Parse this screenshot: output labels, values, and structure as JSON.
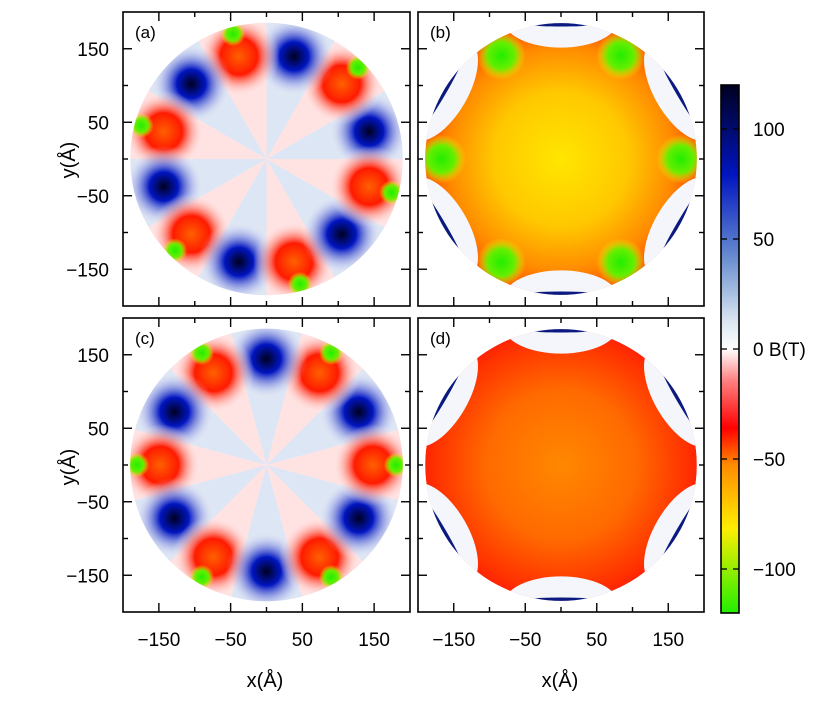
{
  "chart_data": {
    "type": "heatmap",
    "panels": [
      {
        "label": "(a)",
        "pattern": "alternating",
        "phase": 0
      },
      {
        "label": "(b)",
        "pattern": "star",
        "core": "yellow"
      },
      {
        "label": "(c)",
        "pattern": "alternating",
        "phase": 1
      },
      {
        "label": "(d)",
        "pattern": "star",
        "core": "orange"
      }
    ],
    "xlabel": "x(Å)",
    "ylabel": "y(Å)",
    "xlim": [
      -200,
      200
    ],
    "ylim": [
      -200,
      200
    ],
    "x_ticks": [
      "−150",
      "−50",
      "50",
      "150"
    ],
    "y_ticks": [
      "150",
      "50",
      "−50",
      "−150"
    ],
    "colorbar": {
      "label": "B(T)",
      "range": [
        -120,
        120
      ],
      "ticks": [
        "100",
        "50",
        "0",
        "−50",
        "−100"
      ],
      "tick_values": [
        100,
        50,
        0,
        -50,
        -100
      ],
      "zero_label": "0 B(T)",
      "colors": {
        "max": "#000020",
        "high": "#0015c0",
        "mid_high": "#6b8fd0",
        "low_pos": "#dde8f2",
        "zero": "#ffffff",
        "low_neg": "#ff8080",
        "mid_neg": "#ff0000",
        "neg50": "#ff8c00",
        "neg80": "#ffee00",
        "min": "#22ee00"
      }
    }
  }
}
